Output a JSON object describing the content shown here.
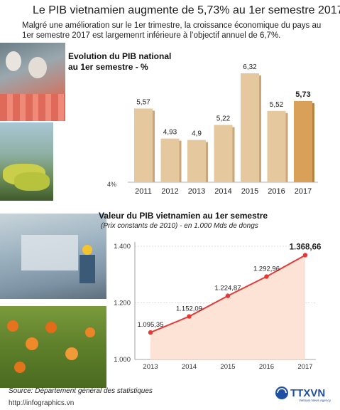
{
  "header": {
    "title": "Le PIB vietnamien augmente de 5,73% au 1er semestre 2017",
    "subtitle": "Malgré une amélioration sur le 1er trimestre, la croissance économique du pays au 1er semestre 2017 est largemenrt inférieure à l’objectif annuel de 6,7%."
  },
  "colors": {
    "bar": "#e6c89f",
    "bar_highlight": "#d9a05a",
    "line": "#e53935",
    "area": "#fde3d6"
  },
  "chart_data": [
    {
      "type": "bar",
      "title_line1": "Evolution du PIB national",
      "title_line2": "au 1er semestre - %",
      "axis_min_label": "4%",
      "categories": [
        "2011",
        "2012",
        "2013",
        "2014",
        "2015",
        "2016",
        "2017"
      ],
      "values": [
        5.57,
        4.93,
        4.9,
        5.22,
        6.32,
        5.52,
        5.73
      ],
      "value_labels": [
        "5,57",
        "4,93",
        "4,9",
        "5,22",
        "6,32",
        "5,52",
        "5,73"
      ],
      "highlight_index": 6,
      "ylim": [
        4,
        6.32
      ]
    },
    {
      "type": "area",
      "title": "Valeur du PIB vietnamien au 1er semestre",
      "subtitle": "(Prix constants de 2010) - en 1.000 Mds de dongs",
      "x": [
        "2013",
        "2014",
        "2015",
        "2016",
        "2017"
      ],
      "values": [
        1095.35,
        1152.09,
        1224.87,
        1292.96,
        1368.66
      ],
      "value_labels": [
        "1.095,35",
        "1.152,09",
        "1.224,87",
        "1.292,96",
        "1.368,66"
      ],
      "highlight_index": 4,
      "yticks": [
        1000,
        1200,
        1400
      ],
      "ytick_labels": [
        "1.000",
        "1.200",
        "1.400"
      ],
      "ylim": [
        1000,
        1400
      ]
    }
  ],
  "footer": {
    "source": "Source: Département général des statistiques",
    "website": "http://infographics.vn"
  },
  "logo": {
    "text": "TTXVN",
    "tagline": "Vietnam News Agency"
  }
}
